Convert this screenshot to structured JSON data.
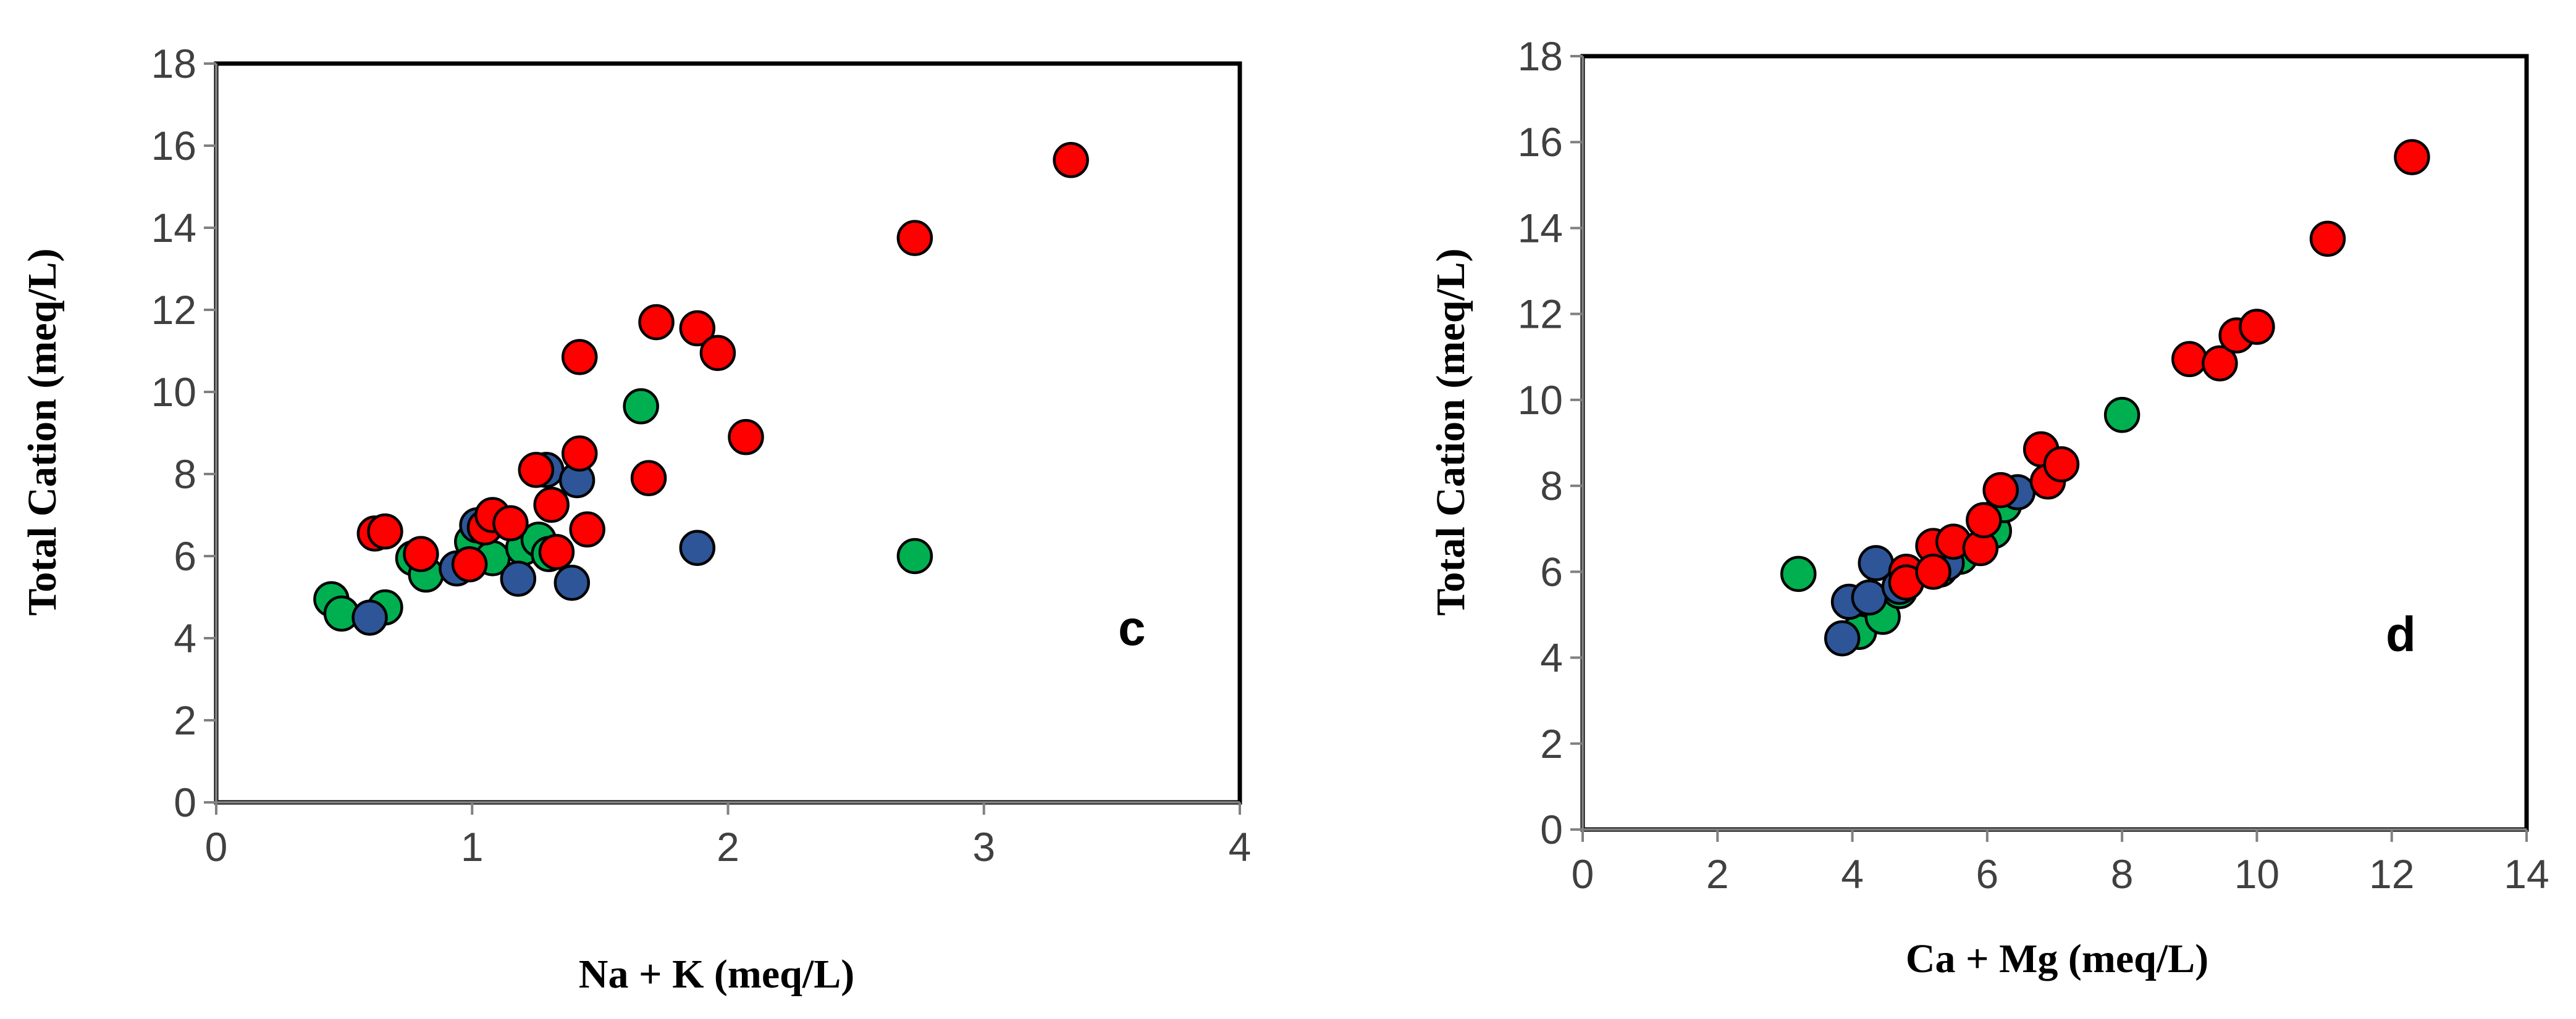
{
  "chart_data": [
    {
      "type": "scatter",
      "panel_label": "c",
      "xlabel": "Na + K (meq/L)",
      "ylabel": "Total Cation (meq/L)",
      "xlim": [
        0,
        4
      ],
      "ylim": [
        0,
        18
      ],
      "xticks": [
        "0",
        "1",
        "2",
        "3",
        "4"
      ],
      "yticks": [
        "0",
        "2",
        "4",
        "6",
        "8",
        "10",
        "12",
        "14",
        "16",
        "18"
      ],
      "grid": false,
      "legend": "none",
      "series": [
        {
          "color": "#00b050",
          "points": [
            [
              0.45,
              4.95
            ],
            [
              0.49,
              4.6
            ],
            [
              0.66,
              4.75
            ],
            [
              0.77,
              5.95
            ],
            [
              0.82,
              5.55
            ],
            [
              1.0,
              6.35
            ],
            [
              1.08,
              5.95
            ],
            [
              1.2,
              6.2
            ],
            [
              1.26,
              6.4
            ],
            [
              1.3,
              6.05
            ],
            [
              1.66,
              9.65
            ],
            [
              2.73,
              6.0
            ]
          ]
        },
        {
          "color": "#2e5597",
          "points": [
            [
              0.6,
              4.5
            ],
            [
              0.94,
              5.7
            ],
            [
              1.02,
              6.75
            ],
            [
              1.18,
              5.45
            ],
            [
              1.29,
              8.1
            ],
            [
              1.39,
              5.35
            ],
            [
              1.41,
              7.85
            ],
            [
              1.88,
              6.2
            ]
          ]
        },
        {
          "color": "#ff0000",
          "points": [
            [
              0.62,
              6.55
            ],
            [
              0.66,
              6.6
            ],
            [
              0.8,
              6.05
            ],
            [
              0.99,
              5.8
            ],
            [
              1.05,
              6.7
            ],
            [
              1.08,
              7.0
            ],
            [
              1.15,
              6.8
            ],
            [
              1.25,
              8.1
            ],
            [
              1.31,
              7.25
            ],
            [
              1.33,
              6.1
            ],
            [
              1.42,
              8.5
            ],
            [
              1.42,
              10.85
            ],
            [
              1.45,
              6.65
            ],
            [
              1.69,
              7.9
            ],
            [
              1.72,
              11.7
            ],
            [
              1.88,
              11.55
            ],
            [
              1.96,
              10.95
            ],
            [
              2.07,
              8.9
            ],
            [
              2.73,
              13.75
            ],
            [
              3.34,
              15.65
            ]
          ]
        }
      ]
    },
    {
      "type": "scatter",
      "panel_label": "d",
      "xlabel": "Ca + Mg (meq/L)",
      "ylabel": "Total Cation (meq/L)",
      "xlim": [
        0,
        14
      ],
      "ylim": [
        0,
        18
      ],
      "xticks": [
        "0",
        "2",
        "4",
        "6",
        "8",
        "10",
        "12",
        "14"
      ],
      "yticks": [
        "0",
        "2",
        "4",
        "6",
        "8",
        "10",
        "12",
        "14",
        "16",
        "18"
      ],
      "grid": false,
      "legend": "none",
      "series": [
        {
          "color": "#00b050",
          "points": [
            [
              3.2,
              5.95
            ],
            [
              4.1,
              4.6
            ],
            [
              4.45,
              4.95
            ],
            [
              4.7,
              5.55
            ],
            [
              5.3,
              6.05
            ],
            [
              5.6,
              6.35
            ],
            [
              6.1,
              6.95
            ],
            [
              6.25,
              7.55
            ],
            [
              8.0,
              9.65
            ]
          ]
        },
        {
          "color": "#2e5597",
          "points": [
            [
              3.85,
              4.45
            ],
            [
              3.95,
              5.3
            ],
            [
              4.25,
              5.4
            ],
            [
              4.35,
              6.2
            ],
            [
              4.7,
              5.65
            ],
            [
              5.4,
              6.2
            ],
            [
              6.45,
              7.85
            ]
          ]
        },
        {
          "color": "#ff0000",
          "points": [
            [
              4.8,
              6.0
            ],
            [
              4.8,
              5.75
            ],
            [
              5.2,
              6.6
            ],
            [
              5.2,
              6.0
            ],
            [
              5.5,
              6.7
            ],
            [
              5.9,
              6.55
            ],
            [
              5.95,
              7.2
            ],
            [
              6.2,
              7.9
            ],
            [
              6.8,
              8.85
            ],
            [
              6.9,
              8.1
            ],
            [
              7.1,
              8.5
            ],
            [
              9.0,
              10.95
            ],
            [
              9.45,
              10.85
            ],
            [
              9.7,
              11.5
            ],
            [
              10.0,
              11.7
            ],
            [
              11.05,
              13.75
            ],
            [
              12.3,
              15.65
            ]
          ]
        }
      ]
    }
  ]
}
